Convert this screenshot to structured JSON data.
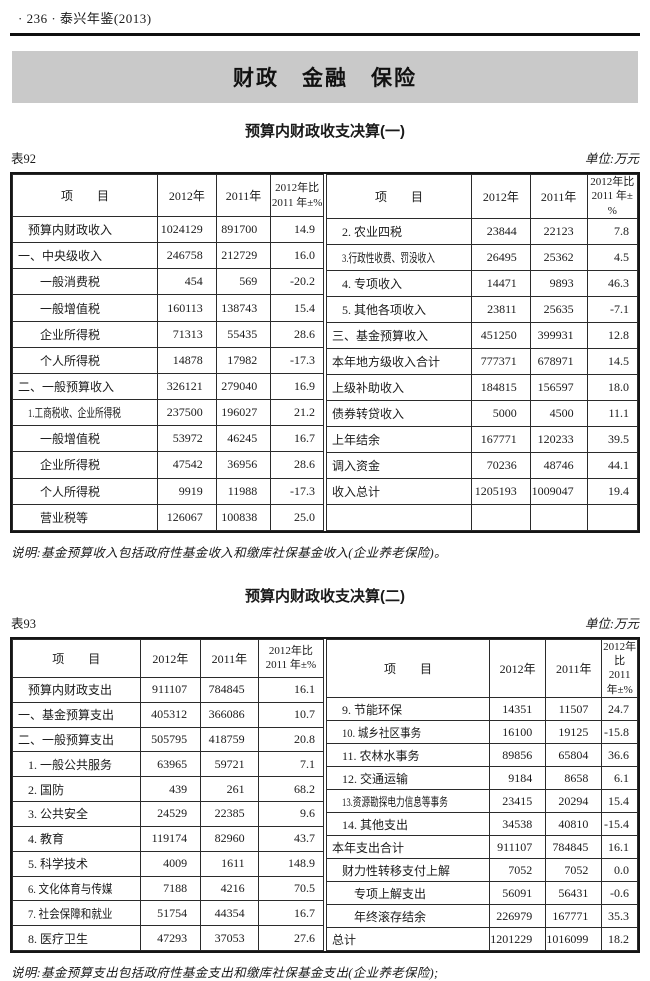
{
  "page": {
    "header": "· 236 · 泰兴年鉴(2013)",
    "banner": "财政　金融　保险"
  },
  "colors": {
    "banner_bg": "#c9c9c9",
    "ink": "#1a1a1a"
  },
  "columns": {
    "item": "项　　目",
    "y2012": "2012年",
    "y2011": "2011年",
    "pct_line1": "2012年比",
    "pct_line2": "2011 年±%"
  },
  "table1": {
    "title": "预算内财政收支决算(一)",
    "table_no": "表92",
    "unit": "单位:万元",
    "note": "说明:基金预算收入包括政府性基金收入和缴库社保基金收入(企业养老保险)。",
    "left_rows": [
      {
        "label": "预算内财政收入",
        "indent": 1,
        "v2012": "1024129",
        "v2011": "891700",
        "pct": "14.9"
      },
      {
        "label": "一、中央级收入",
        "indent": 0,
        "v2012": "246758",
        "v2011": "212729",
        "pct": "16.0"
      },
      {
        "label": "一般消费税",
        "indent": 2,
        "v2012": "454",
        "v2011": "569",
        "pct": "-20.2"
      },
      {
        "label": "一般增值税",
        "indent": 2,
        "v2012": "160113",
        "v2011": "138743",
        "pct": "15.4"
      },
      {
        "label": "企业所得税",
        "indent": 2,
        "v2012": "71313",
        "v2011": "55435",
        "pct": "28.6"
      },
      {
        "label": "个人所得税",
        "indent": 2,
        "v2012": "14878",
        "v2011": "17982",
        "pct": "-17.3"
      },
      {
        "label": "二、一般预算收入",
        "indent": 0,
        "v2012": "326121",
        "v2011": "279040",
        "pct": "16.9"
      },
      {
        "label": "1.工商税收、企业所得税",
        "indent": 1,
        "v2012": "237500",
        "v2011": "196027",
        "pct": "21.2"
      },
      {
        "label": "一般增值税",
        "indent": 2,
        "v2012": "53972",
        "v2011": "46245",
        "pct": "16.7"
      },
      {
        "label": "企业所得税",
        "indent": 2,
        "v2012": "47542",
        "v2011": "36956",
        "pct": "28.6"
      },
      {
        "label": "个人所得税",
        "indent": 2,
        "v2012": "9919",
        "v2011": "11988",
        "pct": "-17.3"
      },
      {
        "label": "营业税等",
        "indent": 2,
        "v2012": "126067",
        "v2011": "100838",
        "pct": "25.0"
      }
    ],
    "right_rows": [
      {
        "label": "2. 农业四税",
        "indent": 1,
        "v2012": "23844",
        "v2011": "22123",
        "pct": "7.8"
      },
      {
        "label": "3.行政性收费、罚没收入",
        "indent": 1,
        "v2012": "26495",
        "v2011": "25362",
        "pct": "4.5"
      },
      {
        "label": "4. 专项收入",
        "indent": 1,
        "v2012": "14471",
        "v2011": "9893",
        "pct": "46.3"
      },
      {
        "label": "5. 其他各项收入",
        "indent": 1,
        "v2012": "23811",
        "v2011": "25635",
        "pct": "-7.1"
      },
      {
        "label": "三、基金预算收入",
        "indent": 0,
        "v2012": "451250",
        "v2011": "399931",
        "pct": "12.8"
      },
      {
        "label": "本年地方级收入合计",
        "indent": 0,
        "v2012": "777371",
        "v2011": "678971",
        "pct": "14.5"
      },
      {
        "label": "上级补助收入",
        "indent": 0,
        "v2012": "184815",
        "v2011": "156597",
        "pct": "18.0"
      },
      {
        "label": "债券转贷收入",
        "indent": 0,
        "v2012": "5000",
        "v2011": "4500",
        "pct": "11.1"
      },
      {
        "label": "上年结余",
        "indent": 0,
        "v2012": "167771",
        "v2011": "120233",
        "pct": "39.5"
      },
      {
        "label": "调入资金",
        "indent": 0,
        "v2012": "70236",
        "v2011": "48746",
        "pct": "44.1"
      },
      {
        "label": "收入总计",
        "indent": 0,
        "v2012": "1205193",
        "v2011": "1009047",
        "pct": "19.4"
      },
      {
        "label": "",
        "indent": 0,
        "v2012": "",
        "v2011": "",
        "pct": ""
      }
    ]
  },
  "table2": {
    "title": "预算内财政收支决算(二)",
    "table_no": "表93",
    "unit": "单位:万元",
    "note": "说明:基金预算支出包括政府性基金支出和缴库社保基金支出(企业养老保险);",
    "left_rows": [
      {
        "label": "预算内财政支出",
        "indent": 1,
        "v2012": "911107",
        "v2011": "784845",
        "pct": "16.1"
      },
      {
        "label": "一、基金预算支出",
        "indent": 0,
        "v2012": "405312",
        "v2011": "366086",
        "pct": "10.7"
      },
      {
        "label": "二、一般预算支出",
        "indent": 0,
        "v2012": "505795",
        "v2011": "418759",
        "pct": "20.8"
      },
      {
        "label": "1. 一般公共服务",
        "indent": 1,
        "v2012": "63965",
        "v2011": "59721",
        "pct": "7.1"
      },
      {
        "label": "2. 国防",
        "indent": 1,
        "v2012": "439",
        "v2011": "261",
        "pct": "68.2"
      },
      {
        "label": "3. 公共安全",
        "indent": 1,
        "v2012": "24529",
        "v2011": "22385",
        "pct": "9.6"
      },
      {
        "label": "4. 教育",
        "indent": 1,
        "v2012": "119174",
        "v2011": "82960",
        "pct": "43.7"
      },
      {
        "label": "5. 科学技术",
        "indent": 1,
        "v2012": "4009",
        "v2011": "1611",
        "pct": "148.9"
      },
      {
        "label": "6. 文化体育与传媒",
        "indent": 1,
        "v2012": "7188",
        "v2011": "4216",
        "pct": "70.5"
      },
      {
        "label": "7. 社会保障和就业",
        "indent": 1,
        "v2012": "51754",
        "v2011": "44354",
        "pct": "16.7"
      },
      {
        "label": "8. 医疗卫生",
        "indent": 1,
        "v2012": "47293",
        "v2011": "37053",
        "pct": "27.6"
      }
    ],
    "right_rows": [
      {
        "label": "9. 节能环保",
        "indent": 1,
        "v2012": "14351",
        "v2011": "11507",
        "pct": "24.7"
      },
      {
        "label": "10. 城乡社区事务",
        "indent": 1,
        "v2012": "16100",
        "v2011": "19125",
        "pct": "-15.8"
      },
      {
        "label": "11. 农林水事务",
        "indent": 1,
        "v2012": "89856",
        "v2011": "65804",
        "pct": "36.6"
      },
      {
        "label": "12. 交通运输",
        "indent": 1,
        "v2012": "9184",
        "v2011": "8658",
        "pct": "6.1"
      },
      {
        "label": "13.资源勘探电力信息等事务",
        "indent": 1,
        "v2012": "23415",
        "v2011": "20294",
        "pct": "15.4"
      },
      {
        "label": "14. 其他支出",
        "indent": 1,
        "v2012": "34538",
        "v2011": "40810",
        "pct": "-15.4"
      },
      {
        "label": "本年支出合计",
        "indent": 0,
        "v2012": "911107",
        "v2011": "784845",
        "pct": "16.1"
      },
      {
        "label": "财力性转移支付上解",
        "indent": 1,
        "v2012": "7052",
        "v2011": "7052",
        "pct": "0.0"
      },
      {
        "label": "专项上解支出",
        "indent": 2,
        "v2012": "56091",
        "v2011": "56431",
        "pct": "-0.6"
      },
      {
        "label": "年终滚存结余",
        "indent": 2,
        "v2012": "226979",
        "v2011": "167771",
        "pct": "35.3"
      },
      {
        "label": "总计",
        "indent": 0,
        "v2012": "1201229",
        "v2011": "1016099",
        "pct": "18.2"
      }
    ]
  }
}
